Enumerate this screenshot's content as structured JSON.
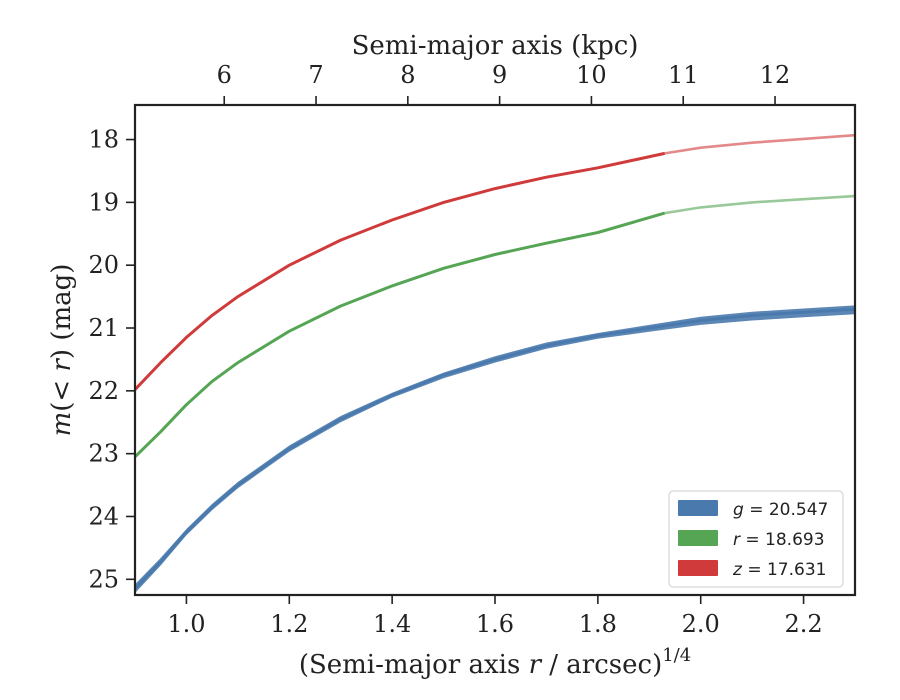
{
  "chart_data": {
    "type": "line",
    "xlabel_prefix": "(Semi-major axis ",
    "xlabel_var": "r",
    "xlabel_suffix": " / arcsec)",
    "xlabel_sup": "1/4",
    "ylabel_prefix": "m",
    "ylabel_mid": "(< ",
    "ylabel_var": "r",
    "ylabel_suffix": ") (mag)",
    "top_xlabel": "Semi-major axis (kpc)",
    "xlim": [
      0.9,
      2.3
    ],
    "ylim": [
      25.25,
      17.45
    ],
    "x_ticks": [
      1.0,
      1.2,
      1.4,
      1.6,
      1.8,
      2.0,
      2.2
    ],
    "x_tick_labels": [
      "1.0",
      "1.2",
      "1.4",
      "1.6",
      "1.8",
      "2.0",
      "2.2"
    ],
    "y_ticks": [
      18,
      19,
      20,
      21,
      22,
      23,
      24,
      25
    ],
    "y_tick_labels": [
      "18",
      "19",
      "20",
      "21",
      "22",
      "23",
      "24",
      "25"
    ],
    "top_ticks": [
      {
        "x": 1.0735,
        "label": "6"
      },
      {
        "x": 1.252,
        "label": "7"
      },
      {
        "x": 1.4305,
        "label": "8"
      },
      {
        "x": 1.609,
        "label": "9"
      },
      {
        "x": 1.7875,
        "label": "10"
      },
      {
        "x": 1.966,
        "label": "11"
      },
      {
        "x": 2.1445,
        "label": "12"
      }
    ],
    "legend_position": "lower-right",
    "series": [
      {
        "name": "g",
        "label_var": "g",
        "label_value": " = 20.547",
        "color": "#4a7aad",
        "x": [
          0.9,
          0.95,
          1.0,
          1.05,
          1.1,
          1.2,
          1.3,
          1.4,
          1.5,
          1.6,
          1.7,
          1.8,
          1.9,
          2.0,
          2.1,
          2.2,
          2.3
        ],
        "y": [
          25.15,
          24.72,
          24.25,
          23.85,
          23.5,
          22.92,
          22.45,
          22.07,
          21.75,
          21.5,
          21.28,
          21.12,
          21.0,
          20.88,
          20.8,
          20.75,
          20.7
        ],
        "y_low": [
          25.22,
          24.78,
          24.3,
          23.9,
          23.55,
          22.97,
          22.5,
          22.11,
          21.8,
          21.55,
          21.33,
          21.17,
          21.06,
          20.95,
          20.88,
          20.83,
          20.78
        ],
        "y_high": [
          25.08,
          24.66,
          24.2,
          23.8,
          23.45,
          22.87,
          22.4,
          22.03,
          21.71,
          21.45,
          21.23,
          21.08,
          20.95,
          20.82,
          20.74,
          20.69,
          20.64
        ]
      },
      {
        "name": "r",
        "label_var": "r",
        "label_value": " = 18.693",
        "color": "#55a555",
        "x": [
          0.9,
          0.95,
          1.0,
          1.05,
          1.1,
          1.2,
          1.3,
          1.4,
          1.5,
          1.6,
          1.7,
          1.8,
          1.93,
          2.0,
          2.1,
          2.2,
          2.3
        ],
        "y": [
          23.05,
          22.65,
          22.22,
          21.85,
          21.55,
          21.05,
          20.65,
          20.33,
          20.05,
          19.83,
          19.65,
          19.48,
          19.17,
          19.08,
          19.0,
          18.95,
          18.9
        ],
        "faded_from": 1.93
      },
      {
        "name": "z",
        "label_var": "z",
        "label_value": " = 17.631",
        "color": "#d03a3a",
        "x": [
          0.9,
          0.95,
          1.0,
          1.05,
          1.1,
          1.2,
          1.3,
          1.4,
          1.5,
          1.6,
          1.7,
          1.8,
          1.93,
          2.0,
          2.1,
          2.2,
          2.3
        ],
        "y": [
          21.98,
          21.55,
          21.15,
          20.8,
          20.5,
          20.0,
          19.6,
          19.28,
          19.0,
          18.78,
          18.6,
          18.45,
          18.22,
          18.13,
          18.05,
          17.99,
          17.93
        ],
        "faded_from": 1.93
      }
    ]
  }
}
